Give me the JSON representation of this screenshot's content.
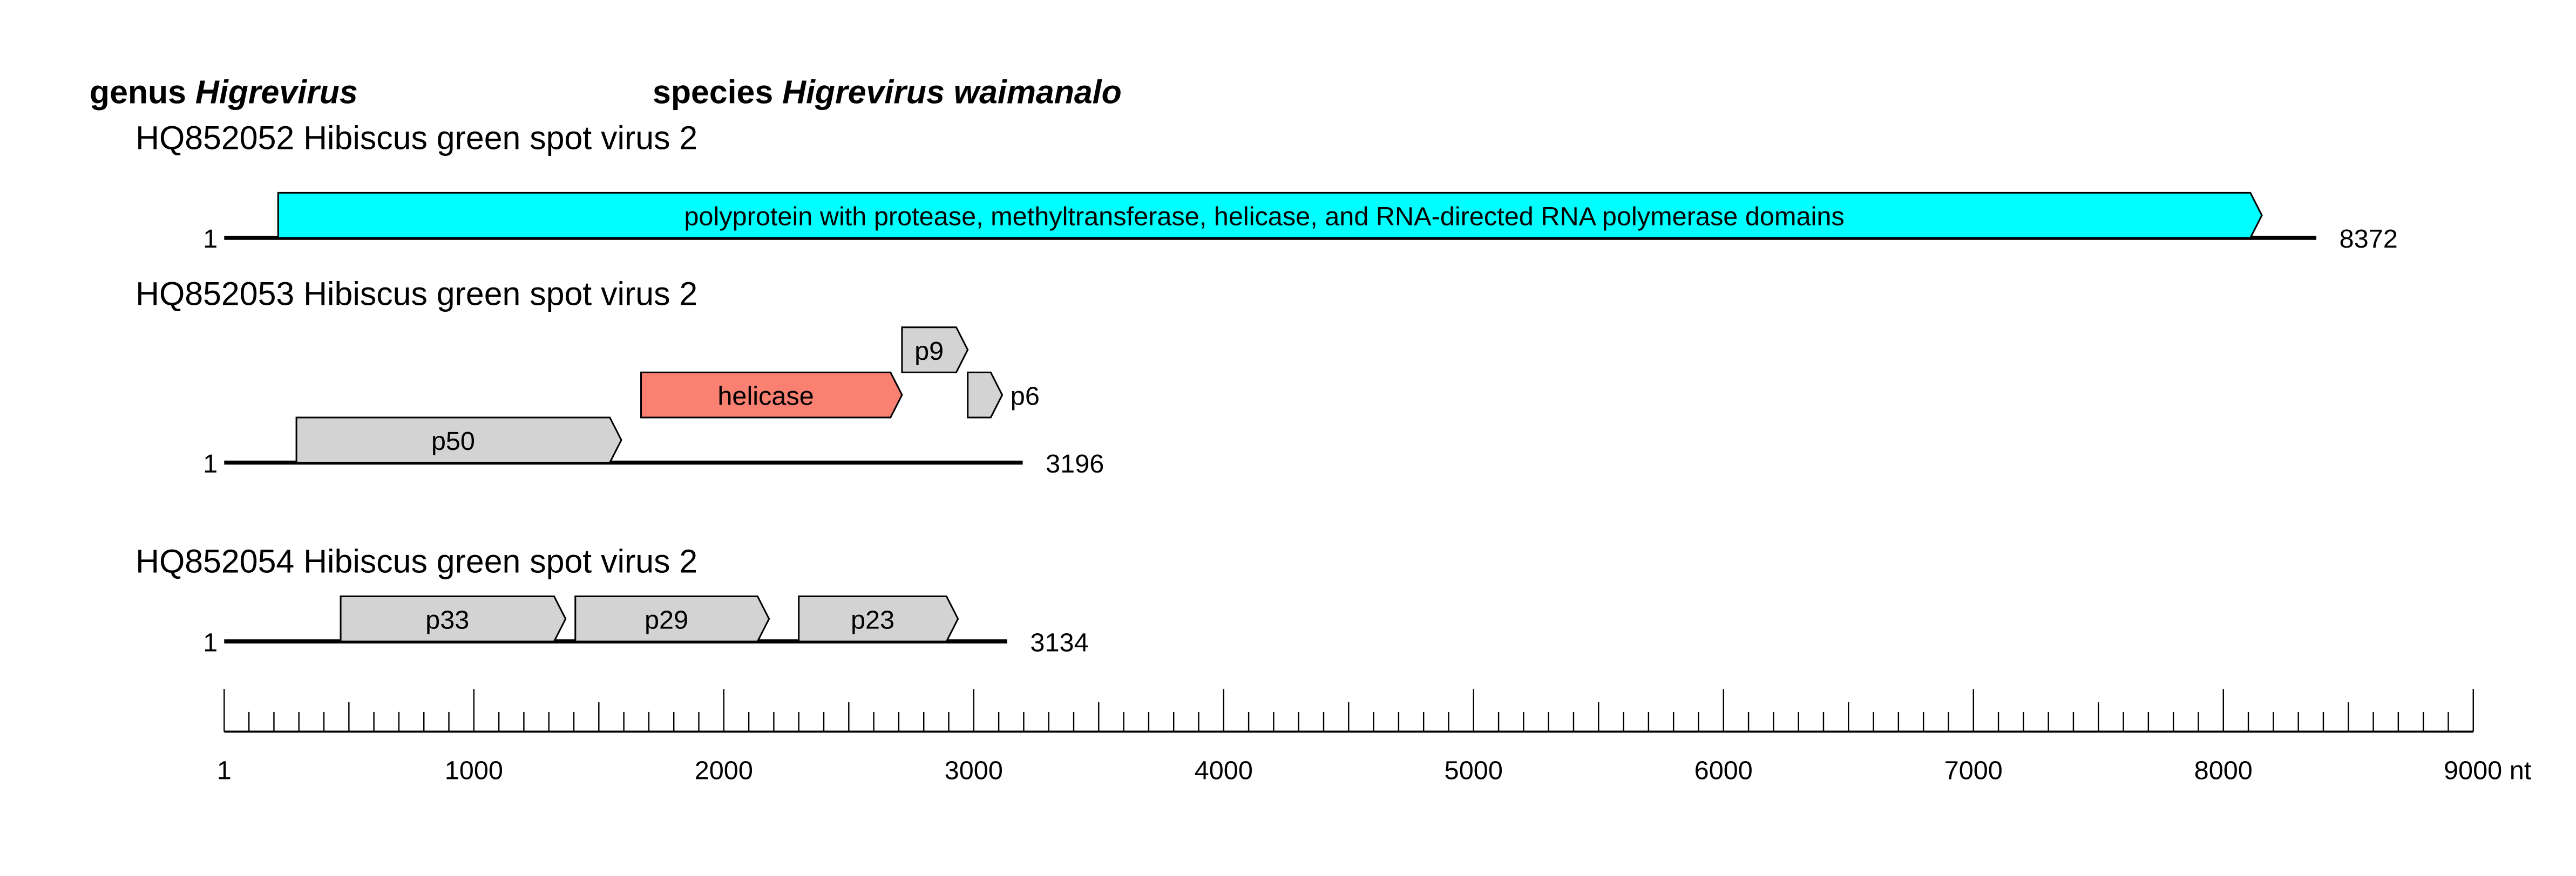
{
  "header": {
    "genus_label": "genus",
    "genus_name": "Higrevirus",
    "species_label": "species",
    "species_name": "Higrevirus waimanalo"
  },
  "records": [
    {
      "title": "HQ852052 Hibiscus green spot virus 2",
      "start_label": "1",
      "length": 8372,
      "end_label": "8372",
      "features": [
        {
          "label": "polyprotein with protease, methyltransferase, helicase, and RNA-directed RNA polymerase domains",
          "start": 217,
          "end": 8154,
          "color": "#00FFFF",
          "label_outside": false
        }
      ]
    },
    {
      "title": "HQ852053 Hibiscus green spot virus 2",
      "start_label": "1",
      "length": 3196,
      "end_label": "3196",
      "features": [
        {
          "label": "p50",
          "start": 290,
          "end": 1590,
          "color": "#D3D3D3",
          "label_outside": false
        },
        {
          "label": "helicase",
          "start": 1669,
          "end": 2713,
          "color": "#FA8072",
          "label_outside": false
        },
        {
          "label": "p9",
          "start": 2713,
          "end": 2976,
          "color": "#D3D3D3",
          "label_outside": false
        },
        {
          "label": "p6",
          "start": 2976,
          "end": 3114,
          "color": "#D3D3D3",
          "label_outside": true
        }
      ]
    },
    {
      "title": "HQ852054 Hibiscus green spot virus 2",
      "start_label": "1",
      "length": 3134,
      "end_label": "3134",
      "features": [
        {
          "label": "p33",
          "start": 467,
          "end": 1367,
          "color": "#D3D3D3",
          "label_outside": false
        },
        {
          "label": "p29",
          "start": 1406,
          "end": 2181,
          "color": "#D3D3D3",
          "label_outside": false
        },
        {
          "label": "p23",
          "start": 2300,
          "end": 2937,
          "color": "#D3D3D3",
          "label_outside": false
        }
      ]
    }
  ],
  "scale": {
    "min": 1,
    "max": 9000,
    "unit": "nt",
    "tick_labels": [
      "1",
      "1000",
      "2000",
      "3000",
      "4000",
      "5000",
      "6000",
      "7000",
      "8000",
      "9000"
    ]
  }
}
